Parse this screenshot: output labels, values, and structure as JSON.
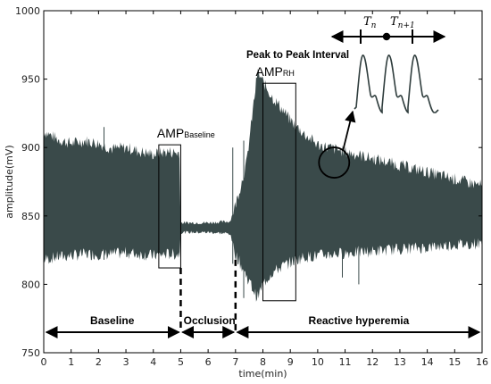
{
  "chart_data": {
    "type": "line",
    "xlabel": "time(min)",
    "ylabel": "amplitude(mV)",
    "xlim": [
      0,
      16
    ],
    "ylim": [
      750,
      1000
    ],
    "x_ticks": [
      0,
      1,
      2,
      3,
      4,
      5,
      6,
      7,
      8,
      9,
      10,
      11,
      12,
      13,
      14,
      15,
      16
    ],
    "y_ticks": [
      750,
      800,
      850,
      900,
      950,
      1000
    ],
    "grid": false,
    "series_color": "#3a4a4a",
    "envelope": {
      "x": [
        0,
        0.5,
        1,
        1.5,
        2,
        2.5,
        3,
        3.5,
        4,
        4.5,
        4.95,
        5,
        6,
        6.8,
        7,
        7.4,
        7.8,
        8,
        8.3,
        8.7,
        9,
        9.5,
        10,
        11,
        12,
        13,
        14,
        15,
        16
      ],
      "upper": [
        912,
        906,
        903,
        905,
        903,
        899,
        900,
        897,
        895,
        897,
        896,
        845,
        845,
        846,
        858,
        888,
        955,
        948,
        938,
        928,
        920,
        910,
        902,
        897,
        892,
        887,
        882,
        877,
        872
      ],
      "lower": [
        818,
        820,
        821,
        822,
        822,
        822,
        823,
        822,
        821,
        822,
        822,
        838,
        838,
        837,
        822,
        806,
        790,
        800,
        808,
        813,
        816,
        820,
        821,
        823,
        824,
        826,
        827,
        829,
        830
      ]
    },
    "annotations": {
      "amp_baseline": {
        "label": "AMP",
        "subscript": "Baseline",
        "box_x": [
          4.2,
          5.0
        ],
        "box_y": [
          812,
          902
        ]
      },
      "amp_rh": {
        "label": "AMP",
        "subscript": "RH",
        "box_x": [
          8.0,
          9.2
        ],
        "box_y": [
          788,
          947
        ]
      },
      "peak_interval_title": "Peak to Peak Interval",
      "inset_labels": [
        "T",
        "n",
        "T",
        "n+1"
      ],
      "phases": [
        {
          "label": "Baseline",
          "x_range": [
            0,
            5
          ]
        },
        {
          "label": "Occlusion",
          "x_range": [
            5,
            7
          ]
        },
        {
          "label": "Reactive hyperemia",
          "x_range": [
            7,
            16
          ]
        }
      ],
      "dividers_x": [
        5,
        7
      ],
      "zoom_circle": {
        "x": 10.6,
        "y": 889
      }
    }
  }
}
